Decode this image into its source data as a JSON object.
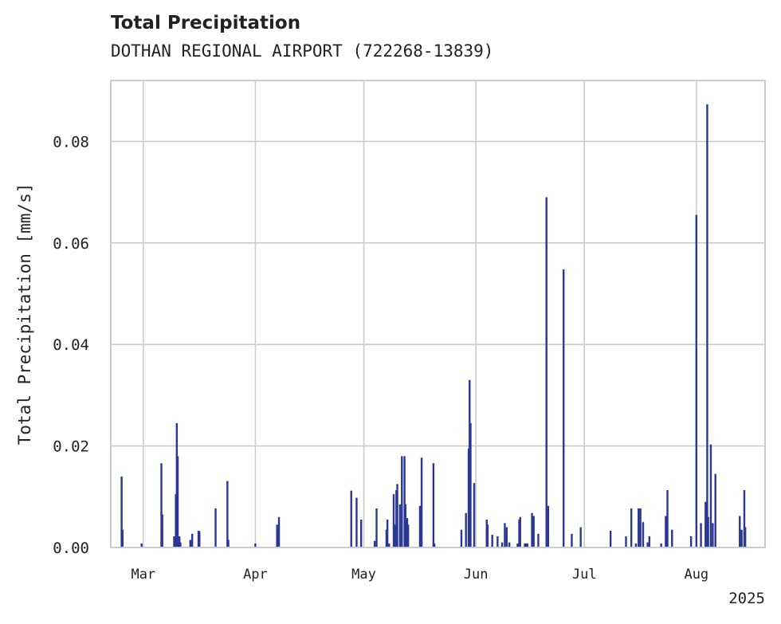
{
  "chart_data": {
    "type": "bar",
    "title": "Total Precipitation",
    "subtitle": "DOTHAN REGIONAL AIRPORT (722268-13839)",
    "ylabel": "Total Precipitation [mm/s]",
    "xlabel": "",
    "year_label": "2025",
    "ylim": [
      0,
      0.092
    ],
    "xlim": [
      "2025-02-20",
      "2025-08-20"
    ],
    "yticks": [
      0.0,
      0.02,
      0.04,
      0.06,
      0.08
    ],
    "ytick_labels": [
      "0.00",
      "0.02",
      "0.04",
      "0.06",
      "0.08"
    ],
    "xticks": [
      {
        "date": "2025-03-01",
        "label": "Mar"
      },
      {
        "date": "2025-04-01",
        "label": "Apr"
      },
      {
        "date": "2025-05-01",
        "label": "May"
      },
      {
        "date": "2025-06-01",
        "label": "Jun"
      },
      {
        "date": "2025-07-01",
        "label": "Jul"
      },
      {
        "date": "2025-08-01",
        "label": "Aug"
      }
    ],
    "grid": true,
    "legend": "none",
    "color": "#2b3794",
    "series": [
      {
        "x": [
          "2025-02-23",
          "2025-02-23",
          "2025-02-28",
          "2025-03-06",
          "2025-03-06",
          "2025-03-09",
          "2025-03-10",
          "2025-03-10",
          "2025-03-10",
          "2025-03-11",
          "2025-03-11",
          "2025-03-14",
          "2025-03-14",
          "2025-03-16",
          "2025-03-16",
          "2025-03-21",
          "2025-03-24",
          "2025-03-24",
          "2025-04-01",
          "2025-04-07",
          "2025-04-07",
          "2025-04-07",
          "2025-04-07",
          "2025-04-27",
          "2025-04-29",
          "2025-04-30",
          "2025-05-04",
          "2025-05-04",
          "2025-05-07",
          "2025-05-07",
          "2025-05-08",
          "2025-05-09",
          "2025-05-09",
          "2025-05-10",
          "2025-05-10",
          "2025-05-11",
          "2025-05-11",
          "2025-05-12",
          "2025-05-12",
          "2025-05-13",
          "2025-05-13",
          "2025-05-16",
          "2025-05-17",
          "2025-05-20",
          "2025-05-20",
          "2025-05-28",
          "2025-05-29",
          "2025-05-30",
          "2025-05-30",
          "2025-05-30",
          "2025-05-31",
          "2025-06-04",
          "2025-06-04",
          "2025-06-05",
          "2025-06-07",
          "2025-06-08",
          "2025-06-09",
          "2025-06-09",
          "2025-06-10",
          "2025-06-12",
          "2025-06-13",
          "2025-06-13",
          "2025-06-14",
          "2025-06-15",
          "2025-06-15",
          "2025-06-16",
          "2025-06-17",
          "2025-06-18",
          "2025-06-20",
          "2025-06-21",
          "2025-06-25",
          "2025-06-27",
          "2025-06-30",
          "2025-07-08",
          "2025-07-12",
          "2025-07-14",
          "2025-07-15",
          "2025-07-16",
          "2025-07-16",
          "2025-07-17",
          "2025-07-18",
          "2025-07-19",
          "2025-07-22",
          "2025-07-23",
          "2025-07-24",
          "2025-07-25",
          "2025-07-30",
          "2025-08-01",
          "2025-08-02",
          "2025-08-03",
          "2025-08-04",
          "2025-08-04",
          "2025-08-05",
          "2025-08-05",
          "2025-08-06",
          "2025-08-13",
          "2025-08-13",
          "2025-08-14",
          "2025-08-14"
        ],
        "values": [
          0.014,
          0.0035,
          0.0008,
          0.0166,
          0.0065,
          0.0022,
          0.0105,
          0.0245,
          0.018,
          0.0022,
          0.001,
          0.0027,
          0.0015,
          0.0033,
          0.0032,
          0.0077,
          0.0131,
          0.0015,
          0.0008,
          0.001,
          0.006,
          0.0045,
          0.0035,
          0.0112,
          0.0098,
          0.0055,
          0.0077,
          0.0013,
          0.0035,
          0.0055,
          0.0008,
          0.0105,
          0.0045,
          0.0113,
          0.0125,
          0.018,
          0.0085,
          0.018,
          0.0085,
          0.0058,
          0.0045,
          0.0082,
          0.0177,
          0.0166,
          0.0008,
          0.0035,
          0.0068,
          0.0245,
          0.0195,
          0.033,
          0.0127,
          0.0055,
          0.0045,
          0.0025,
          0.0022,
          0.001,
          0.004,
          0.0048,
          0.001,
          0.0008,
          0.0055,
          0.006,
          0.0008,
          0.0008,
          0.0008,
          0.0068,
          0.0062,
          0.0027,
          0.069,
          0.0082,
          0.0548,
          0.0027,
          0.004,
          0.0033,
          0.0022,
          0.0077,
          0.0008,
          0.0077,
          0.0077,
          0.005,
          0.001,
          0.0022,
          0.0008,
          0.0062,
          0.0113,
          0.0035,
          0.0022,
          0.0655,
          0.0048,
          0.009,
          0.0873,
          0.006,
          0.0048,
          0.0203,
          0.0145,
          0.0035,
          0.0062,
          0.0113,
          0.004
        ]
      }
    ]
  }
}
